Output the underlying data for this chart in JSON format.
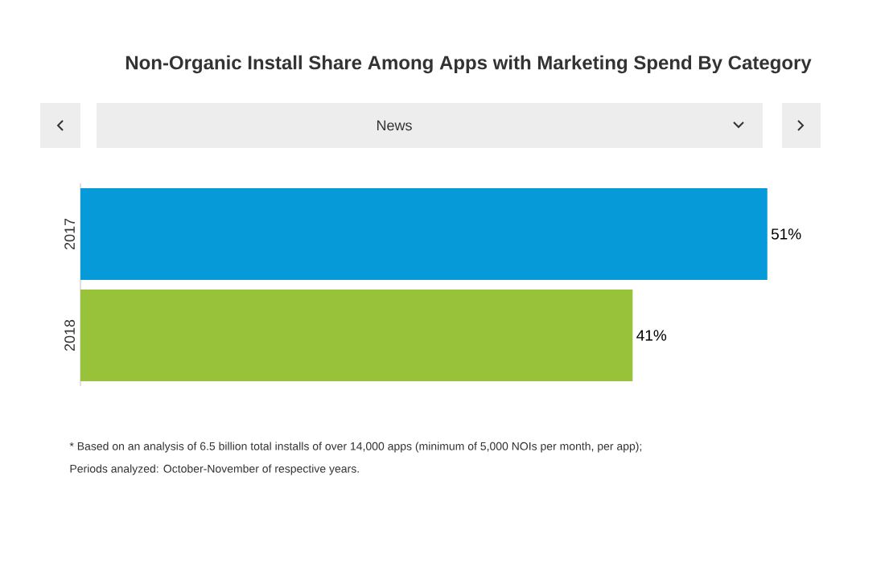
{
  "chart_data": {
    "type": "bar",
    "orientation": "horizontal",
    "title": "Non-Organic Install Share Among Apps with Marketing Spend By Category",
    "subtitle": "News",
    "categories": [
      "2017",
      "2018"
    ],
    "values": [
      51,
      41
    ],
    "colors": [
      "#069bd8",
      "#97c23a"
    ],
    "data_labels": true,
    "value_labels": [
      "51%",
      "41%"
    ],
    "tick_labels": "y",
    "annotations": [
      "* Based on an analysis of 6.5 billion total installs of over 14,000 apps (minimum of 5,000 NOIs per month, per app);",
      "Periods analyzed: October-November of respective years."
    ]
  }
}
